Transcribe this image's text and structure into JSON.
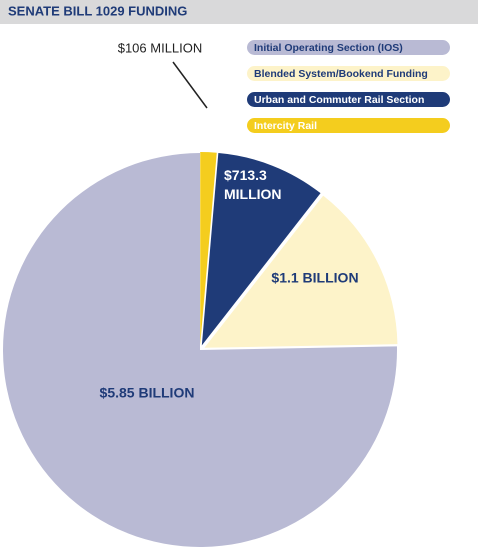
{
  "chart_data": {
    "type": "pie",
    "title": "SENATE BILL 1029 FUNDING",
    "categories": [
      "Initial Operating Section (IOS)",
      "Blended System/Bookend Funding",
      "Urban and Commuter Rail Section",
      "Intercity Rail"
    ],
    "values": [
      5850,
      1100,
      713.3,
      106
    ],
    "value_labels": [
      "$5.85 BILLION",
      "$1.1 BILLION",
      "$713.3 MILLION",
      "$106 MILLION"
    ],
    "colors": [
      "#b9bad4",
      "#fdf3c9",
      "#1f3b78",
      "#f4cd1e"
    ]
  }
}
